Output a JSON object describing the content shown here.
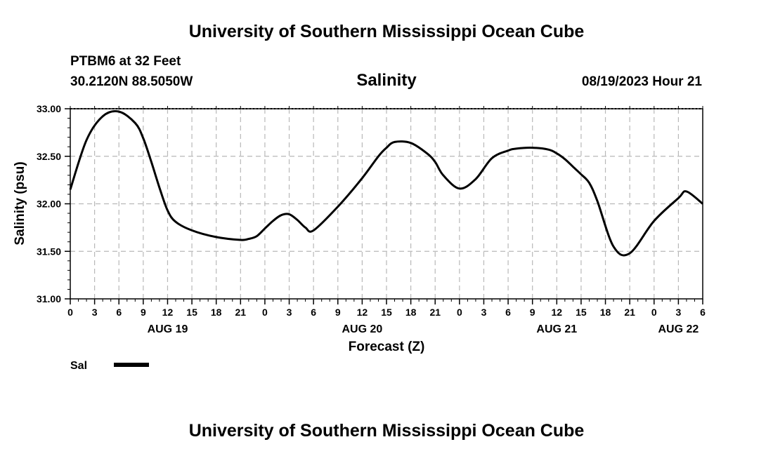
{
  "header": {
    "top_title": "University of Southern Mississippi Ocean Cube",
    "bottom_title": "University of Southern Mississippi Ocean Cube",
    "station": "PTBM6 at 32 Feet",
    "coords": "30.2120N  88.5050W",
    "timestamp": "08/19/2023 Hour 21"
  },
  "chart_data": {
    "type": "line",
    "title": "Salinity",
    "xlabel": "Forecast (Z)",
    "ylabel": "Salinity (psu)",
    "ylim": [
      31.0,
      33.0
    ],
    "y_ticks": [
      "31.00",
      "31.50",
      "32.00",
      "32.50",
      "33.00"
    ],
    "xlim_hours": [
      0,
      78
    ],
    "x_tick_labels": [
      "0",
      "3",
      "6",
      "9",
      "12",
      "15",
      "18",
      "21",
      "0",
      "3",
      "6",
      "9",
      "12",
      "15",
      "18",
      "21",
      "0",
      "3",
      "6",
      "9",
      "12",
      "15",
      "18",
      "21",
      "0",
      "3",
      "6"
    ],
    "day_labels": [
      {
        "label": "AUG 19",
        "hour": 12
      },
      {
        "label": "AUG 20",
        "hour": 36
      },
      {
        "label": "AUG 21",
        "hour": 60
      },
      {
        "label": "AUG 22",
        "hour": 75
      }
    ],
    "grid": true,
    "legend": [
      {
        "name": "Sal",
        "color": "#000000"
      }
    ],
    "series": [
      {
        "name": "Sal",
        "color": "#000000",
        "x": [
          0,
          2,
          4,
          6,
          8,
          9,
          10,
          11,
          12,
          13,
          15,
          18,
          21,
          22,
          23,
          24,
          25,
          26,
          27,
          28,
          29,
          30,
          33,
          36,
          38,
          39,
          40,
          42,
          44,
          45,
          46,
          48,
          50,
          52,
          54,
          55,
          57,
          59,
          60,
          61,
          62,
          63,
          64,
          65,
          67,
          69,
          72,
          75,
          76,
          78
        ],
        "y": [
          32.15,
          32.67,
          32.92,
          32.97,
          32.85,
          32.69,
          32.44,
          32.17,
          31.93,
          31.81,
          31.72,
          31.65,
          31.62,
          31.63,
          31.66,
          31.74,
          31.82,
          31.88,
          31.89,
          31.83,
          31.75,
          31.72,
          31.97,
          32.27,
          32.5,
          32.59,
          32.65,
          32.64,
          32.53,
          32.44,
          32.3,
          32.16,
          32.26,
          32.48,
          32.56,
          32.58,
          32.59,
          32.57,
          32.53,
          32.47,
          32.39,
          32.31,
          32.22,
          32.03,
          31.55,
          31.48,
          31.82,
          32.06,
          32.13,
          32.0
        ]
      }
    ]
  }
}
